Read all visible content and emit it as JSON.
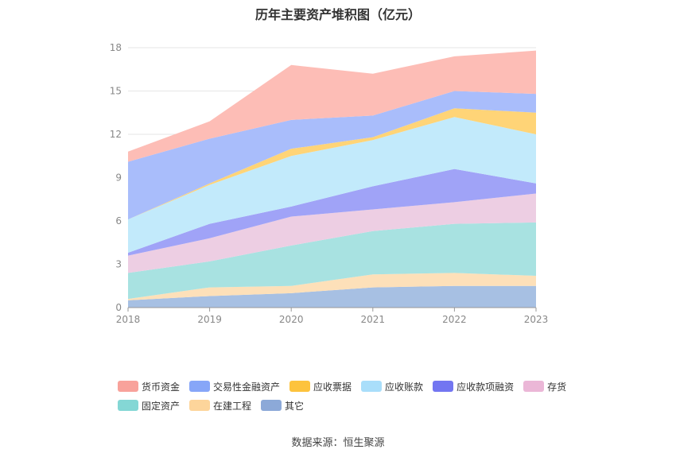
{
  "title": "历年主要资产堆积图（亿元）",
  "source": "数据来源：恒生聚源",
  "chart_data": {
    "type": "area",
    "stacked": true,
    "categories": [
      "2018",
      "2019",
      "2020",
      "2021",
      "2022",
      "2023"
    ],
    "ylim": [
      0,
      18
    ],
    "yticks": [
      "0",
      "3",
      "6",
      "9",
      "12",
      "15",
      "18"
    ],
    "grid": true,
    "legend_position": "bottom",
    "series": [
      {
        "name": "其它",
        "color": "#a7c0e3",
        "values": [
          0.5,
          0.8,
          1.0,
          1.4,
          1.5,
          1.5
        ]
      },
      {
        "name": "在建工程",
        "color": "#fde0b9",
        "values": [
          0.1,
          0.6,
          0.5,
          0.9,
          0.9,
          0.7
        ]
      },
      {
        "name": "固定资产",
        "color": "#a8e2e1",
        "values": [
          1.8,
          1.8,
          2.8,
          3.0,
          3.4,
          3.7
        ]
      },
      {
        "name": "存货",
        "color": "#edcee3",
        "values": [
          1.2,
          1.6,
          2.0,
          1.5,
          1.5,
          2.0
        ]
      },
      {
        "name": "应收款项融资",
        "color": "#a0a3f7",
        "values": [
          0.2,
          1.0,
          0.7,
          1.6,
          2.3,
          0.7
        ]
      },
      {
        "name": "应收账款",
        "color": "#c2eafb",
        "values": [
          2.3,
          2.7,
          3.5,
          3.2,
          3.6,
          3.4
        ]
      },
      {
        "name": "应收票据",
        "color": "#ffd477",
        "values": [
          0.0,
          0.1,
          0.5,
          0.2,
          0.6,
          1.5
        ]
      },
      {
        "name": "交易性金融资产",
        "color": "#a9bdfb",
        "values": [
          4.0,
          3.1,
          2.0,
          1.5,
          1.2,
          1.3
        ]
      },
      {
        "name": "货币资金",
        "color": "#fdbdb6",
        "values": [
          0.7,
          1.2,
          3.8,
          2.9,
          2.4,
          3.0
        ]
      }
    ]
  },
  "legend": {
    "rows": [
      [
        {
          "name": "货币资金",
          "color": "#f8a29b"
        },
        {
          "name": "交易性金融资产",
          "color": "#87a6f8"
        },
        {
          "name": "应收票据",
          "color": "#fdc33d"
        },
        {
          "name": "应收账款",
          "color": "#a9defa"
        },
        {
          "name": "应收款项融资",
          "color": "#7376f1"
        },
        {
          "name": "存货",
          "color": "#ebb7d7"
        }
      ],
      [
        {
          "name": "固定资产",
          "color": "#84d7d5"
        },
        {
          "name": "在建工程",
          "color": "#fdd59b"
        },
        {
          "name": "其它",
          "color": "#8ca9d8"
        }
      ]
    ]
  }
}
